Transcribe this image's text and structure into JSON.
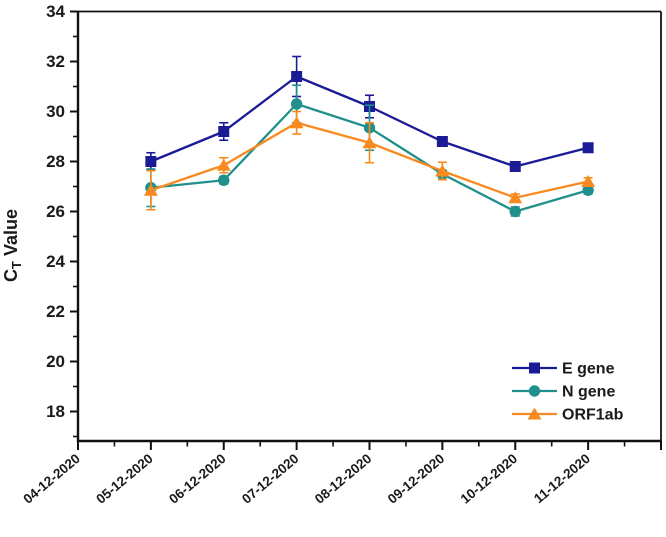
{
  "figure": {
    "background": "#ffffff",
    "axis_color": "#111111",
    "text_color": "#1a1a1a",
    "ylabel_parts": {
      "pre": "C",
      "sub": "T",
      "post": " Value"
    }
  },
  "chart_data": {
    "type": "line",
    "title": "",
    "xlabel": "",
    "ylabel": "CT Value",
    "categories": [
      "04-12-2020",
      "05-12-2020",
      "06-12-2020",
      "07-12-2020",
      "08-12-2020",
      "09-12-2020",
      "10-12-2020",
      "11-12-2020"
    ],
    "y_ticks": [
      18,
      20,
      22,
      24,
      26,
      28,
      30,
      32,
      34
    ],
    "ylim": [
      16.8,
      34
    ],
    "grid": false,
    "error_bars": true,
    "legend_position": "bottom-right",
    "series": [
      {
        "name": "E gene",
        "color": "#1b1b96",
        "marker": "square",
        "values": [
          null,
          28.0,
          29.2,
          31.4,
          30.2,
          28.8,
          27.8,
          28.55
        ],
        "errors": [
          null,
          0.35,
          0.35,
          0.8,
          0.45,
          0.15,
          0.1,
          0.12
        ]
      },
      {
        "name": "N gene",
        "color": "#21908c",
        "marker": "circle",
        "values": [
          null,
          26.95,
          27.25,
          30.3,
          29.35,
          27.5,
          26.0,
          26.85
        ],
        "errors": [
          null,
          0.75,
          0.15,
          0.75,
          0.9,
          0.15,
          0.18,
          0.15
        ]
      },
      {
        "name": "ORF1ab",
        "color": "#f98a20",
        "marker": "triangle",
        "values": [
          null,
          26.85,
          27.85,
          29.55,
          28.75,
          27.62,
          26.55,
          27.2
        ],
        "errors": [
          null,
          0.78,
          0.3,
          0.45,
          0.8,
          0.35,
          0.15,
          0.15
        ]
      }
    ]
  }
}
